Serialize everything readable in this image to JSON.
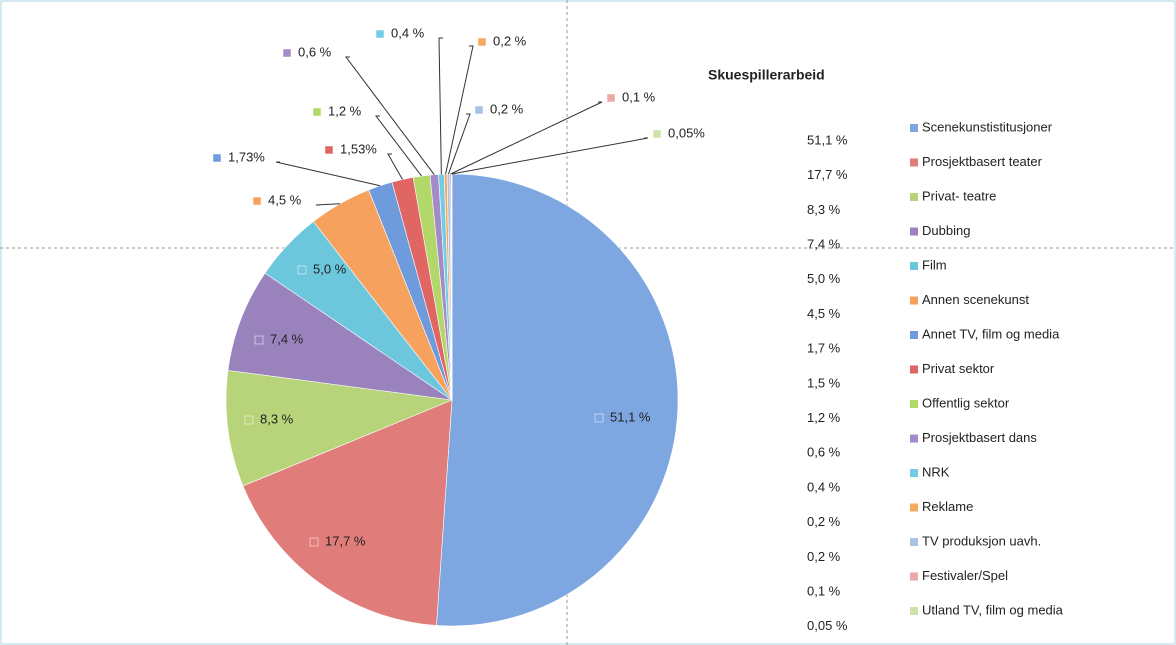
{
  "chart_data": {
    "type": "pie",
    "title": "Skuespillerarbeid",
    "categories": [
      "Scenekunstistitusjoner",
      "Prosjektbasert teater",
      "Privat- teatre",
      "Dubbing",
      "Film",
      "Annen scenekunst",
      "Annet TV, film og media",
      "Privat sektor",
      "Offentlig sektor",
      "Prosjektbasert dans",
      "NRK",
      "Reklame",
      "TV produksjon uavh.",
      "Festivaler/Spel",
      "Utland TV, film og media"
    ],
    "values": [
      51.1,
      17.7,
      8.3,
      7.4,
      5.0,
      4.5,
      1.73,
      1.53,
      1.2,
      0.6,
      0.4,
      0.2,
      0.2,
      0.1,
      0.05
    ],
    "value_labels": [
      "51,1 %",
      "17,7 %",
      "8,3 %",
      "7,4 %",
      "5,0 %",
      "4,5 %",
      "1,73%",
      "1,53%",
      "1,2 %",
      "0,6 %",
      "0,4 %",
      "0,2 %",
      "0,2 %",
      "0,1 %",
      "0,05%"
    ],
    "legend_values": [
      "51,1 %",
      "17,7 %",
      "8,3 %",
      "7,4 %",
      "5,0 %",
      "4,5 %",
      "1,7 %",
      "1,5 %",
      "1,2 %",
      "0,6 %",
      "0,4 %",
      "0,2 %",
      "0,2 %",
      "0,1 %",
      "0,05 %"
    ],
    "colors": [
      "#7ea6e0",
      "#e07c79",
      "#b7d47a",
      "#9a82bd",
      "#6cc6dc",
      "#f6a25e",
      "#6d9bdc",
      "#e06663",
      "#b2d86a",
      "#a48bc8",
      "#72cde4",
      "#f4a860",
      "#a9c3e6",
      "#eaa9a6",
      "#cfe2a7"
    ]
  }
}
